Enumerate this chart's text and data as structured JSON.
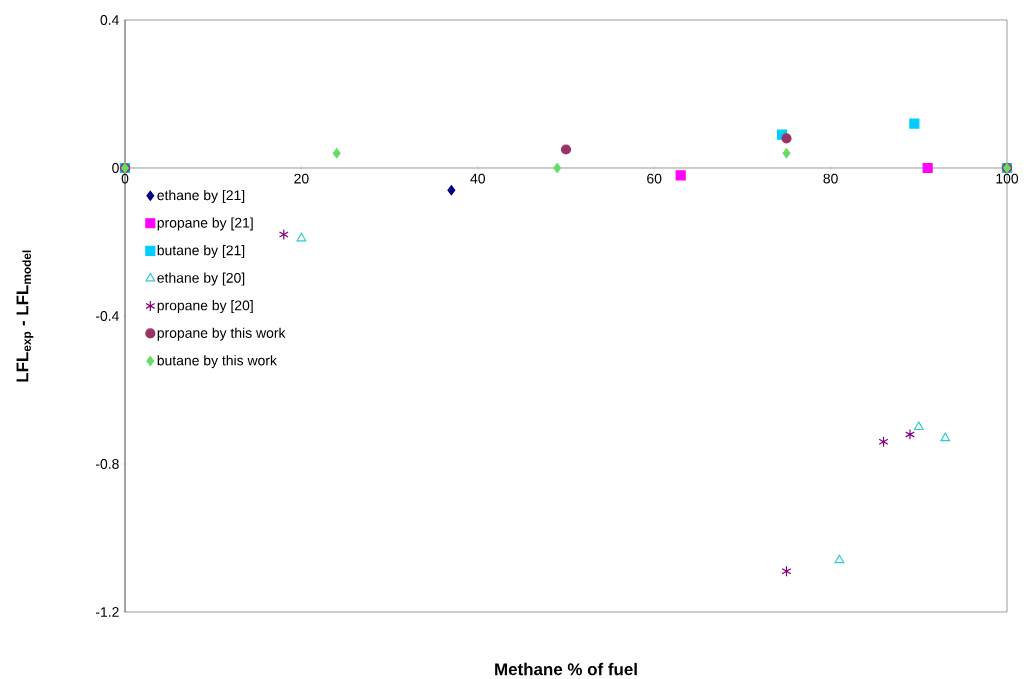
{
  "chart_data": {
    "type": "scatter",
    "xlabel": "Methane % of fuel",
    "ylabel": "LFL$_{exp}$ - LFL$_{model}$",
    "xlim": [
      0,
      100
    ],
    "ylim": [
      -1.2,
      0.4
    ],
    "xticks": [
      0,
      20,
      40,
      60,
      80,
      100
    ],
    "yticks": [
      -1.2,
      -0.8,
      -0.4,
      0,
      0.4
    ],
    "grid": false,
    "legend": "left",
    "series": [
      {
        "name": "ethane by [21]",
        "color": "#000080",
        "marker": "diamond",
        "x": [
          37
        ],
        "values": [
          -0.06
        ]
      },
      {
        "name": "propane by [21]",
        "color": "#ff00ff",
        "marker": "square",
        "x": [
          0,
          63,
          91,
          100
        ],
        "values": [
          0,
          -0.02,
          0,
          0
        ]
      },
      {
        "name": "butane by [21]",
        "color": "#00ccff",
        "marker": "square",
        "x": [
          0,
          74.5,
          89.5,
          100
        ],
        "values": [
          0,
          0.09,
          0.12,
          0
        ]
      },
      {
        "name": "ethane by [20]",
        "color": "#33cccc",
        "marker": "triangle",
        "x": [
          20,
          81,
          90,
          93
        ],
        "values": [
          -0.19,
          -1.06,
          -0.7,
          -0.73
        ]
      },
      {
        "name": "propane by [20]",
        "color": "#800080",
        "marker": "cross",
        "x": [
          18,
          75,
          86,
          89
        ],
        "values": [
          -0.18,
          -1.09,
          -0.74,
          -0.72
        ]
      },
      {
        "name": "propane by this work",
        "color": "#993366",
        "marker": "circle",
        "x": [
          0,
          50,
          75,
          100
        ],
        "values": [
          0,
          0.05,
          0.08,
          0
        ]
      },
      {
        "name": "butane by this work",
        "color": "#66dd66",
        "marker": "diamond",
        "x": [
          0,
          24,
          49,
          75,
          100
        ],
        "values": [
          0,
          0.04,
          0,
          0.04,
          0
        ]
      }
    ]
  }
}
